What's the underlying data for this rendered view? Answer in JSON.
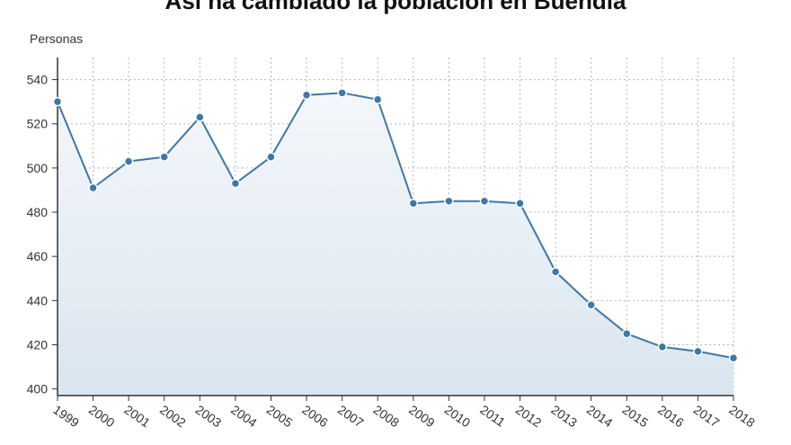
{
  "chart_data": {
    "type": "area",
    "title": "Así ha cambiado la población en Buendía",
    "ylabel": "Personas",
    "xlabel": "",
    "ylim": [
      397,
      550
    ],
    "yticks": [
      400,
      420,
      440,
      460,
      480,
      500,
      520,
      540
    ],
    "grid": true,
    "legend": "none",
    "categories": [
      "1999",
      "2000",
      "2001",
      "2002",
      "2003",
      "2004",
      "2005",
      "2006",
      "2007",
      "2008",
      "2009",
      "2010",
      "2011",
      "2012",
      "2013",
      "2014",
      "2015",
      "2016",
      "2017",
      "2018"
    ],
    "series": [
      {
        "values": [
          530,
          491,
          503,
          505,
          523,
          493,
          505,
          533,
          534,
          531,
          484,
          485,
          485,
          484,
          453,
          438,
          425,
          419,
          417,
          414
        ]
      }
    ],
    "colors": {
      "line": "#3d78a8",
      "fill_top": "#f4f7fb",
      "fill_bottom": "#dae5ef",
      "grid": "#b5b5b5"
    }
  }
}
